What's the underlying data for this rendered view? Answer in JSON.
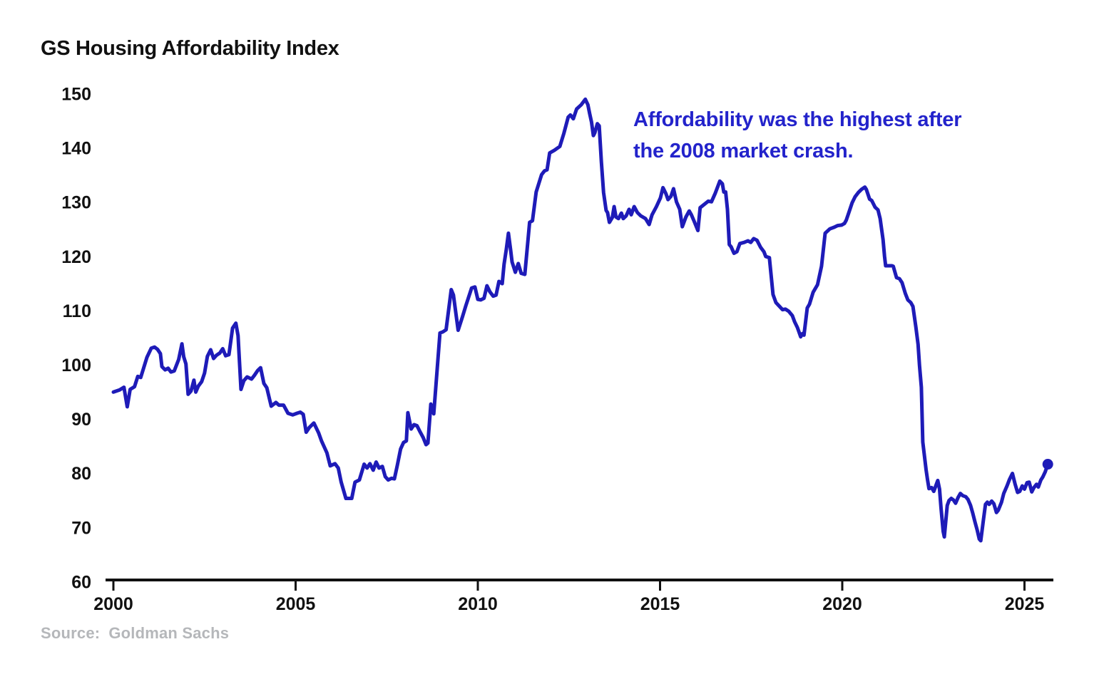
{
  "header": {
    "title": "GS Housing Affordability Index"
  },
  "annotation": {
    "text": "Affordability was the highest after the 2008 market crash.",
    "line1": "Affordability was the highest after",
    "line2": "the 2008 market crash.",
    "color": "#2323cb"
  },
  "source": {
    "label": "Source:",
    "value": "Goldman Sachs"
  },
  "chart_data": {
    "type": "line",
    "title": "GS Housing Affordability Index",
    "series_name": "GS Housing Affordability Index",
    "xlabel": "",
    "ylabel": "",
    "xlim": [
      2000,
      2026
    ],
    "ylim": [
      60,
      150
    ],
    "x_ticks": [
      2000,
      2005,
      2010,
      2015,
      2020,
      2025
    ],
    "y_ticks": [
      150,
      140,
      130,
      120,
      110,
      100,
      90,
      80,
      70,
      60
    ],
    "grid": false,
    "legend_position": "none",
    "line_color": "#1e1bb8",
    "axis_color": "#101010",
    "end_point_marker": true,
    "points": [
      [
        2000.0,
        95.0
      ],
      [
        2000.17,
        95.4
      ],
      [
        2000.29,
        95.9
      ],
      [
        2000.38,
        92.3
      ],
      [
        2000.46,
        95.5
      ],
      [
        2000.58,
        96.0
      ],
      [
        2000.67,
        97.9
      ],
      [
        2000.75,
        97.7
      ],
      [
        2000.92,
        101.4
      ],
      [
        2001.04,
        103.1
      ],
      [
        2001.13,
        103.3
      ],
      [
        2001.21,
        102.9
      ],
      [
        2001.29,
        102.1
      ],
      [
        2001.33,
        99.7
      ],
      [
        2001.42,
        99.1
      ],
      [
        2001.5,
        99.4
      ],
      [
        2001.58,
        98.7
      ],
      [
        2001.67,
        98.9
      ],
      [
        2001.79,
        101.0
      ],
      [
        2001.88,
        103.9
      ],
      [
        2001.93,
        101.5
      ],
      [
        2001.99,
        100.2
      ],
      [
        2002.05,
        94.6
      ],
      [
        2002.13,
        95.2
      ],
      [
        2002.21,
        97.2
      ],
      [
        2002.26,
        95.0
      ],
      [
        2002.33,
        96.1
      ],
      [
        2002.42,
        96.9
      ],
      [
        2002.5,
        98.5
      ],
      [
        2002.58,
        101.6
      ],
      [
        2002.67,
        102.8
      ],
      [
        2002.75,
        101.2
      ],
      [
        2002.83,
        101.8
      ],
      [
        2002.92,
        102.2
      ],
      [
        2003.0,
        103.0
      ],
      [
        2003.08,
        101.7
      ],
      [
        2003.17,
        101.9
      ],
      [
        2003.27,
        106.8
      ],
      [
        2003.36,
        107.7
      ],
      [
        2003.42,
        105.4
      ],
      [
        2003.5,
        95.5
      ],
      [
        2003.58,
        97.1
      ],
      [
        2003.67,
        97.8
      ],
      [
        2003.79,
        97.4
      ],
      [
        2003.87,
        98.1
      ],
      [
        2003.96,
        99.0
      ],
      [
        2004.04,
        99.5
      ],
      [
        2004.13,
        96.6
      ],
      [
        2004.21,
        95.8
      ],
      [
        2004.33,
        92.4
      ],
      [
        2004.46,
        93.1
      ],
      [
        2004.54,
        92.6
      ],
      [
        2004.67,
        92.6
      ],
      [
        2004.79,
        91.1
      ],
      [
        2004.92,
        90.8
      ],
      [
        2005.04,
        91.1
      ],
      [
        2005.13,
        91.3
      ],
      [
        2005.21,
        90.9
      ],
      [
        2005.29,
        87.6
      ],
      [
        2005.38,
        88.5
      ],
      [
        2005.5,
        89.3
      ],
      [
        2005.63,
        87.5
      ],
      [
        2005.71,
        86.0
      ],
      [
        2005.86,
        83.8
      ],
      [
        2005.95,
        81.4
      ],
      [
        2006.08,
        81.8
      ],
      [
        2006.17,
        81.0
      ],
      [
        2006.25,
        78.4
      ],
      [
        2006.38,
        75.4
      ],
      [
        2006.54,
        75.4
      ],
      [
        2006.63,
        78.4
      ],
      [
        2006.75,
        78.8
      ],
      [
        2006.88,
        81.7
      ],
      [
        2006.96,
        81.0
      ],
      [
        2007.04,
        81.8
      ],
      [
        2007.13,
        80.6
      ],
      [
        2007.21,
        82.1
      ],
      [
        2007.29,
        81.0
      ],
      [
        2007.38,
        81.3
      ],
      [
        2007.46,
        79.4
      ],
      [
        2007.54,
        78.8
      ],
      [
        2007.63,
        79.1
      ],
      [
        2007.71,
        79.0
      ],
      [
        2007.79,
        81.5
      ],
      [
        2007.88,
        84.5
      ],
      [
        2007.96,
        85.7
      ],
      [
        2008.04,
        86.0
      ],
      [
        2008.08,
        91.2
      ],
      [
        2008.17,
        88.2
      ],
      [
        2008.25,
        89.0
      ],
      [
        2008.33,
        88.8
      ],
      [
        2008.42,
        87.6
      ],
      [
        2008.5,
        86.6
      ],
      [
        2008.58,
        85.3
      ],
      [
        2008.63,
        85.6
      ],
      [
        2008.71,
        92.8
      ],
      [
        2008.79,
        91.0
      ],
      [
        2008.96,
        105.9
      ],
      [
        2009.04,
        106.1
      ],
      [
        2009.13,
        106.5
      ],
      [
        2009.27,
        113.9
      ],
      [
        2009.33,
        112.9
      ],
      [
        2009.46,
        106.4
      ],
      [
        2009.58,
        108.9
      ],
      [
        2009.67,
        110.9
      ],
      [
        2009.83,
        114.2
      ],
      [
        2009.92,
        114.4
      ],
      [
        2010.0,
        112.1
      ],
      [
        2010.08,
        112.0
      ],
      [
        2010.17,
        112.3
      ],
      [
        2010.25,
        114.6
      ],
      [
        2010.33,
        113.5
      ],
      [
        2010.42,
        112.7
      ],
      [
        2010.5,
        112.9
      ],
      [
        2010.58,
        115.4
      ],
      [
        2010.67,
        115.0
      ],
      [
        2010.72,
        118.6
      ],
      [
        2010.78,
        121.3
      ],
      [
        2010.84,
        124.3
      ],
      [
        2010.9,
        121.2
      ],
      [
        2010.94,
        119.0
      ],
      [
        2011.03,
        117.1
      ],
      [
        2011.11,
        118.7
      ],
      [
        2011.19,
        116.9
      ],
      [
        2011.29,
        116.7
      ],
      [
        2011.42,
        126.3
      ],
      [
        2011.5,
        126.6
      ],
      [
        2011.6,
        131.9
      ],
      [
        2011.75,
        135.1
      ],
      [
        2011.83,
        135.8
      ],
      [
        2011.9,
        136.0
      ],
      [
        2011.97,
        139.1
      ],
      [
        2012.1,
        139.6
      ],
      [
        2012.25,
        140.3
      ],
      [
        2012.36,
        142.7
      ],
      [
        2012.48,
        145.7
      ],
      [
        2012.54,
        146.1
      ],
      [
        2012.62,
        145.4
      ],
      [
        2012.71,
        147.2
      ],
      [
        2012.84,
        148.0
      ],
      [
        2012.95,
        149.0
      ],
      [
        2013.02,
        148.0
      ],
      [
        2013.07,
        146.3
      ],
      [
        2013.12,
        144.8
      ],
      [
        2013.17,
        142.3
      ],
      [
        2013.21,
        142.8
      ],
      [
        2013.28,
        144.5
      ],
      [
        2013.33,
        144.1
      ],
      [
        2013.39,
        137.5
      ],
      [
        2013.45,
        131.8
      ],
      [
        2013.52,
        128.5
      ],
      [
        2013.56,
        128.1
      ],
      [
        2013.61,
        126.3
      ],
      [
        2013.69,
        127.2
      ],
      [
        2013.74,
        129.2
      ],
      [
        2013.79,
        127.3
      ],
      [
        2013.86,
        127.0
      ],
      [
        2013.94,
        128.0
      ],
      [
        2013.99,
        127.0
      ],
      [
        2014.07,
        127.5
      ],
      [
        2014.15,
        128.7
      ],
      [
        2014.21,
        127.7
      ],
      [
        2014.29,
        129.2
      ],
      [
        2014.38,
        128.1
      ],
      [
        2014.47,
        127.5
      ],
      [
        2014.6,
        127.0
      ],
      [
        2014.7,
        125.9
      ],
      [
        2014.78,
        127.7
      ],
      [
        2014.9,
        129.2
      ],
      [
        2015.01,
        130.8
      ],
      [
        2015.08,
        132.7
      ],
      [
        2015.16,
        131.6
      ],
      [
        2015.22,
        130.5
      ],
      [
        2015.3,
        131.1
      ],
      [
        2015.37,
        132.5
      ],
      [
        2015.45,
        130.1
      ],
      [
        2015.54,
        128.7
      ],
      [
        2015.61,
        125.5
      ],
      [
        2015.71,
        127.3
      ],
      [
        2015.8,
        128.4
      ],
      [
        2015.86,
        127.7
      ],
      [
        2015.93,
        126.6
      ],
      [
        2016.04,
        124.8
      ],
      [
        2016.1,
        129.0
      ],
      [
        2016.32,
        130.2
      ],
      [
        2016.41,
        130.1
      ],
      [
        2016.51,
        131.6
      ],
      [
        2016.64,
        133.9
      ],
      [
        2016.71,
        133.4
      ],
      [
        2016.75,
        131.9
      ],
      [
        2016.8,
        131.9
      ],
      [
        2016.85,
        128.7
      ],
      [
        2016.9,
        122.2
      ],
      [
        2016.95,
        121.8
      ],
      [
        2017.03,
        120.6
      ],
      [
        2017.11,
        120.9
      ],
      [
        2017.19,
        122.4
      ],
      [
        2017.31,
        122.6
      ],
      [
        2017.41,
        122.9
      ],
      [
        2017.49,
        122.6
      ],
      [
        2017.57,
        123.3
      ],
      [
        2017.66,
        123.0
      ],
      [
        2017.76,
        121.7
      ],
      [
        2017.85,
        120.9
      ],
      [
        2017.9,
        120.0
      ],
      [
        2018.0,
        119.8
      ],
      [
        2018.1,
        113.0
      ],
      [
        2018.18,
        111.5
      ],
      [
        2018.28,
        110.8
      ],
      [
        2018.36,
        110.2
      ],
      [
        2018.44,
        110.3
      ],
      [
        2018.53,
        109.9
      ],
      [
        2018.63,
        109.1
      ],
      [
        2018.69,
        108.0
      ],
      [
        2018.77,
        106.9
      ],
      [
        2018.86,
        105.2
      ],
      [
        2018.91,
        105.8
      ],
      [
        2018.95,
        105.5
      ],
      [
        2019.04,
        110.5
      ],
      [
        2019.1,
        111.2
      ],
      [
        2019.2,
        113.4
      ],
      [
        2019.32,
        114.8
      ],
      [
        2019.43,
        118.2
      ],
      [
        2019.53,
        124.3
      ],
      [
        2019.66,
        125.1
      ],
      [
        2019.78,
        125.4
      ],
      [
        2019.87,
        125.7
      ],
      [
        2019.98,
        125.8
      ],
      [
        2020.06,
        126.1
      ],
      [
        2020.11,
        126.7
      ],
      [
        2020.19,
        128.3
      ],
      [
        2020.27,
        129.9
      ],
      [
        2020.35,
        131.0
      ],
      [
        2020.44,
        131.8
      ],
      [
        2020.53,
        132.4
      ],
      [
        2020.62,
        132.8
      ],
      [
        2020.66,
        132.4
      ],
      [
        2020.75,
        130.6
      ],
      [
        2020.81,
        130.3
      ],
      [
        2020.9,
        129.1
      ],
      [
        2020.98,
        128.6
      ],
      [
        2021.04,
        127.0
      ],
      [
        2021.12,
        123.1
      ],
      [
        2021.16,
        120.0
      ],
      [
        2021.19,
        118.3
      ],
      [
        2021.27,
        118.3
      ],
      [
        2021.36,
        118.3
      ],
      [
        2021.4,
        118.2
      ],
      [
        2021.49,
        116.1
      ],
      [
        2021.57,
        115.9
      ],
      [
        2021.64,
        115.2
      ],
      [
        2021.73,
        113.2
      ],
      [
        2021.8,
        112.0
      ],
      [
        2021.88,
        111.5
      ],
      [
        2021.94,
        110.8
      ],
      [
        2022.02,
        107.0
      ],
      [
        2022.08,
        103.8
      ],
      [
        2022.12,
        99.9
      ],
      [
        2022.17,
        95.9
      ],
      [
        2022.21,
        85.8
      ],
      [
        2022.3,
        80.7
      ],
      [
        2022.34,
        78.8
      ],
      [
        2022.38,
        77.2
      ],
      [
        2022.45,
        77.4
      ],
      [
        2022.51,
        76.7
      ],
      [
        2022.62,
        78.7
      ],
      [
        2022.67,
        77.1
      ],
      [
        2022.71,
        73.6
      ],
      [
        2022.77,
        69.3
      ],
      [
        2022.8,
        68.3
      ],
      [
        2022.88,
        74.1
      ],
      [
        2022.93,
        75.0
      ],
      [
        2022.99,
        75.4
      ],
      [
        2023.05,
        75.1
      ],
      [
        2023.11,
        74.5
      ],
      [
        2023.18,
        75.6
      ],
      [
        2023.24,
        76.3
      ],
      [
        2023.31,
        75.9
      ],
      [
        2023.39,
        75.7
      ],
      [
        2023.45,
        75.2
      ],
      [
        2023.52,
        74.1
      ],
      [
        2023.58,
        72.7
      ],
      [
        2023.64,
        71.1
      ],
      [
        2023.7,
        69.6
      ],
      [
        2023.76,
        67.9
      ],
      [
        2023.8,
        67.6
      ],
      [
        2023.87,
        71.3
      ],
      [
        2023.93,
        74.3
      ],
      [
        2023.98,
        74.7
      ],
      [
        2024.03,
        74.3
      ],
      [
        2024.1,
        74.9
      ],
      [
        2024.16,
        74.4
      ],
      [
        2024.23,
        72.8
      ],
      [
        2024.28,
        73.2
      ],
      [
        2024.37,
        74.7
      ],
      [
        2024.43,
        76.3
      ],
      [
        2024.52,
        77.7
      ],
      [
        2024.59,
        78.9
      ],
      [
        2024.67,
        80.0
      ],
      [
        2024.74,
        78.1
      ],
      [
        2024.81,
        76.5
      ],
      [
        2024.87,
        76.7
      ],
      [
        2024.94,
        77.7
      ],
      [
        2025.0,
        77.1
      ],
      [
        2025.07,
        78.3
      ],
      [
        2025.13,
        78.4
      ],
      [
        2025.2,
        76.6
      ],
      [
        2025.26,
        77.4
      ],
      [
        2025.33,
        78.0
      ],
      [
        2025.38,
        77.5
      ],
      [
        2025.45,
        78.8
      ],
      [
        2025.5,
        79.3
      ],
      [
        2025.57,
        80.3
      ],
      [
        2025.64,
        81.7
      ]
    ]
  }
}
